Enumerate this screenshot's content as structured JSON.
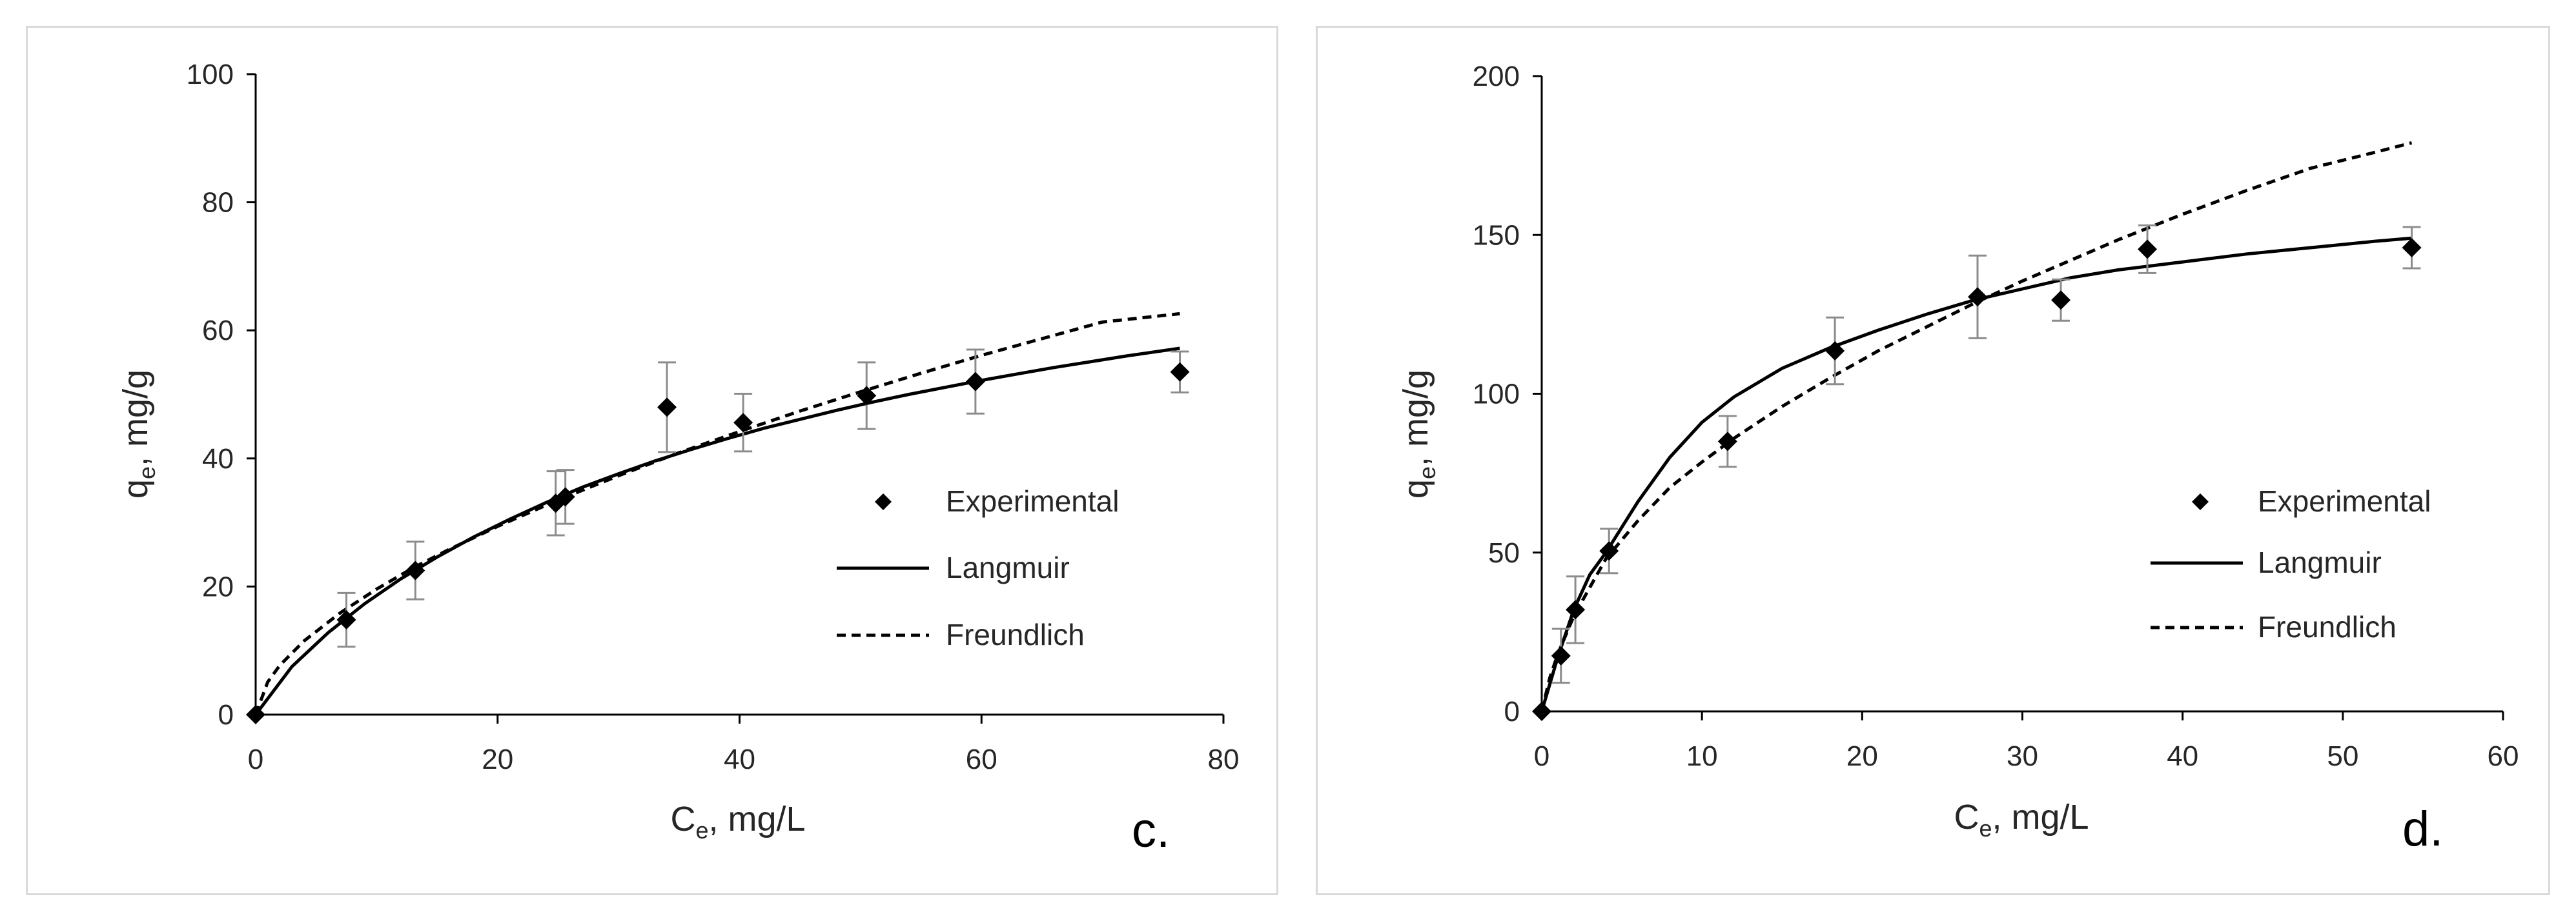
{
  "colors": {
    "markers": "#000000",
    "error_bars": "#8c8c8c",
    "axes": "#000000",
    "text": "#262626",
    "border": "#d9d9d9"
  },
  "chart_data": [
    {
      "id": "c",
      "type": "scatter",
      "panel_label": "c.",
      "xlabel": {
        "main": "C",
        "sub": "e",
        "rest": ", mg/L"
      },
      "ylabel": {
        "main": "q",
        "sub": "e",
        "rest": ", mg/g"
      },
      "xlim": [
        0,
        80
      ],
      "ylim": [
        0,
        100
      ],
      "xticks": [
        0,
        20,
        40,
        60,
        80
      ],
      "yticks": [
        0,
        20,
        40,
        60,
        80,
        100
      ],
      "grid": false,
      "legend_position": "right",
      "series": [
        {
          "name": "Experimental",
          "kind": "markers",
          "marker": "diamond",
          "x": [
            0,
            7.5,
            13.2,
            24.8,
            25.6,
            34,
            40.3,
            50.5,
            59.5,
            76.4
          ],
          "y": [
            0,
            14.8,
            22.5,
            33,
            34,
            48,
            45.6,
            49.8,
            52,
            53.5
          ],
          "error": [
            0,
            4.2,
            4.5,
            5,
            4.2,
            7,
            4.5,
            5.2,
            5,
            3.2
          ]
        },
        {
          "name": "Langmuir",
          "kind": "line",
          "style": "solid",
          "x": [
            0,
            3,
            6,
            9,
            12,
            15,
            18,
            21,
            24,
            27,
            30,
            33,
            36,
            39,
            42,
            45,
            48,
            51,
            54,
            57,
            60,
            63,
            66,
            69,
            72,
            76.4
          ],
          "y": [
            0,
            7.5,
            12.8,
            17.3,
            21.2,
            24.6,
            27.7,
            30.5,
            33.1,
            35.5,
            37.6,
            39.6,
            41.4,
            43.1,
            44.7,
            46.1,
            47.5,
            48.8,
            50,
            51.1,
            52.2,
            53.2,
            54.2,
            55.1,
            56,
            57.2
          ]
        },
        {
          "name": "Freundlich",
          "kind": "line",
          "style": "dashed",
          "x": [
            0,
            1,
            2,
            4,
            7,
            10,
            13,
            16,
            20,
            25,
            30,
            35,
            40,
            45,
            50,
            55,
            60,
            65,
            70,
            76.4
          ],
          "y": [
            0,
            5.1,
            7.7,
            11.5,
            15.9,
            19.6,
            22.9,
            25.8,
            29.4,
            33.5,
            37.3,
            40.9,
            44.2,
            47.4,
            50.4,
            53.3,
            56.1,
            58.7,
            61.3,
            62.6
          ]
        }
      ]
    },
    {
      "id": "d",
      "type": "scatter",
      "panel_label": "d.",
      "xlabel": {
        "main": "C",
        "sub": "e",
        "rest": ", mg/L"
      },
      "ylabel": {
        "main": "q",
        "sub": "e",
        "rest": ", mg/g"
      },
      "xlim": [
        0,
        60
      ],
      "ylim": [
        0,
        200
      ],
      "xticks": [
        0,
        10,
        20,
        30,
        40,
        50,
        60
      ],
      "yticks": [
        0,
        50,
        100,
        150,
        200
      ],
      "grid": false,
      "legend_position": "right",
      "series": [
        {
          "name": "Experimental",
          "kind": "markers",
          "marker": "diamond",
          "x": [
            0,
            1.2,
            2.1,
            4.2,
            11.6,
            18.3,
            27.2,
            32.4,
            37.8,
            54.3
          ],
          "y": [
            0,
            17.5,
            32,
            50.5,
            85,
            113.5,
            130.5,
            129.5,
            145.5,
            146
          ],
          "error": [
            0,
            8.5,
            10.5,
            7,
            8,
            10.5,
            13,
            6.5,
            7.5,
            6.5
          ]
        },
        {
          "name": "Langmuir",
          "kind": "line",
          "style": "solid",
          "x": [
            0,
            1,
            2,
            3,
            4,
            6,
            8,
            10,
            12,
            15,
            18,
            21,
            24,
            27,
            30,
            33,
            36,
            40,
            44,
            48,
            52,
            54.3
          ],
          "y": [
            0,
            17,
            32,
            43,
            50,
            66,
            80,
            91,
            99,
            108,
            114.5,
            120,
            125,
            129.5,
            133,
            136.5,
            139,
            141.5,
            144,
            146,
            148,
            149
          ]
        },
        {
          "name": "Freundlich",
          "kind": "line",
          "style": "dashed",
          "x": [
            0,
            0.5,
            1,
            2,
            4,
            6,
            8,
            10,
            12,
            15,
            18,
            21,
            24,
            27,
            30,
            33,
            36,
            40,
            44,
            48,
            52,
            54.3
          ],
          "y": [
            0,
            10.5,
            18,
            30,
            48,
            60,
            70.5,
            78.5,
            86,
            96,
            105,
            113.5,
            121,
            128.5,
            135.5,
            142,
            148.5,
            156.5,
            164,
            171,
            176,
            179
          ]
        }
      ]
    }
  ]
}
